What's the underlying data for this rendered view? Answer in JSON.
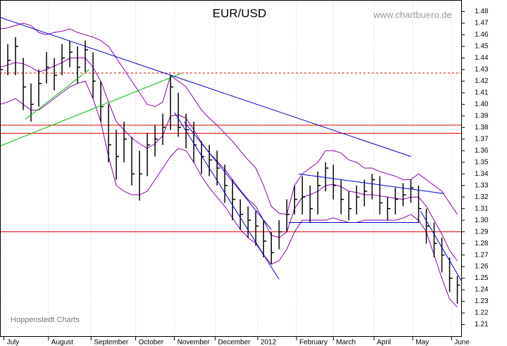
{
  "chart_data": {
    "type": "ohlc",
    "title": "EUR/USD",
    "source": "www.chartbuero.de",
    "credit": "Hoppenstedt Charts",
    "bar_color": "#000000",
    "x": [
      0,
      4,
      8,
      12,
      16,
      20,
      24,
      28,
      32,
      36,
      40,
      44,
      48,
      52,
      56,
      60,
      64,
      68,
      72,
      76,
      80,
      84,
      88,
      92,
      96,
      100,
      104,
      108,
      112,
      116,
      120,
      124,
      128,
      132,
      136,
      140,
      144,
      148,
      152,
      156,
      160,
      164,
      168,
      172,
      176,
      180,
      184,
      188,
      192,
      196,
      200,
      204,
      208,
      212,
      216,
      220,
      224,
      228,
      232,
      236
    ],
    "high": [
      1.442,
      1.452,
      1.458,
      1.44,
      1.418,
      1.43,
      1.445,
      1.44,
      1.452,
      1.455,
      1.45,
      1.455,
      1.445,
      1.42,
      1.4,
      1.378,
      1.385,
      1.372,
      1.36,
      1.375,
      1.382,
      1.392,
      1.425,
      1.41,
      1.392,
      1.385,
      1.368,
      1.365,
      1.36,
      1.348,
      1.335,
      1.318,
      1.312,
      1.308,
      1.3,
      1.29,
      1.3,
      1.318,
      1.33,
      1.338,
      1.33,
      1.342,
      1.35,
      1.348,
      1.335,
      1.325,
      1.33,
      1.335,
      1.34,
      1.338,
      1.32,
      1.328,
      1.332,
      1.335,
      1.33,
      1.31,
      1.298,
      1.285,
      1.268,
      1.252
    ],
    "low": [
      1.418,
      1.425,
      1.425,
      1.395,
      1.385,
      1.398,
      1.418,
      1.412,
      1.425,
      1.432,
      1.418,
      1.428,
      1.405,
      1.385,
      1.35,
      1.335,
      1.35,
      1.33,
      1.317,
      1.338,
      1.355,
      1.365,
      1.378,
      1.372,
      1.362,
      1.35,
      1.34,
      1.338,
      1.33,
      1.315,
      1.3,
      1.292,
      1.285,
      1.278,
      1.268,
      1.262,
      1.275,
      1.29,
      1.305,
      1.305,
      1.298,
      1.305,
      1.325,
      1.318,
      1.305,
      1.3,
      1.305,
      1.312,
      1.318,
      1.305,
      1.3,
      1.305,
      1.312,
      1.315,
      1.298,
      1.28,
      1.268,
      1.255,
      1.238,
      1.228
    ],
    "close": [
      1.43,
      1.438,
      1.45,
      1.415,
      1.4,
      1.418,
      1.432,
      1.425,
      1.44,
      1.445,
      1.432,
      1.447,
      1.42,
      1.398,
      1.365,
      1.355,
      1.37,
      1.34,
      1.34,
      1.365,
      1.37,
      1.38,
      1.415,
      1.38,
      1.378,
      1.365,
      1.355,
      1.352,
      1.345,
      1.33,
      1.318,
      1.305,
      1.3,
      1.295,
      1.282,
      1.272,
      1.29,
      1.305,
      1.318,
      1.32,
      1.31,
      1.33,
      1.345,
      1.33,
      1.318,
      1.31,
      1.32,
      1.325,
      1.335,
      1.315,
      1.31,
      1.318,
      1.322,
      1.328,
      1.31,
      1.295,
      1.28,
      1.27,
      1.25,
      1.244
    ],
    "bollinger": {
      "color": "#8800aa",
      "upper": [
        1.465,
        1.466,
        1.468,
        1.47,
        1.468,
        1.462,
        1.46,
        1.462,
        1.463,
        1.465,
        1.462,
        1.46,
        1.458,
        1.455,
        1.45,
        1.44,
        1.43,
        1.42,
        1.41,
        1.4,
        1.398,
        1.402,
        1.425,
        1.42,
        1.415,
        1.405,
        1.395,
        1.388,
        1.382,
        1.375,
        1.368,
        1.36,
        1.352,
        1.345,
        1.33,
        1.312,
        1.306,
        1.305,
        1.33,
        1.34,
        1.345,
        1.35,
        1.36,
        1.36,
        1.358,
        1.352,
        1.35,
        1.345,
        1.345,
        1.342,
        1.34,
        1.338,
        1.335,
        1.335,
        1.34,
        1.335,
        1.33,
        1.325,
        1.315,
        1.305
      ],
      "middle": [
        1.432,
        1.434,
        1.436,
        1.435,
        1.432,
        1.428,
        1.43,
        1.433,
        1.436,
        1.44,
        1.44,
        1.44,
        1.432,
        1.42,
        1.402,
        1.385,
        1.378,
        1.371,
        1.366,
        1.362,
        1.366,
        1.373,
        1.39,
        1.391,
        1.388,
        1.378,
        1.367,
        1.358,
        1.351,
        1.344,
        1.335,
        1.326,
        1.318,
        1.312,
        1.3,
        1.287,
        1.285,
        1.29,
        1.31,
        1.32,
        1.322,
        1.325,
        1.33,
        1.331,
        1.329,
        1.325,
        1.324,
        1.322,
        1.322,
        1.321,
        1.32,
        1.319,
        1.318,
        1.32,
        1.32,
        1.312,
        1.3,
        1.288,
        1.274,
        1.265
      ],
      "lower": [
        1.4,
        1.402,
        1.405,
        1.4,
        1.395,
        1.395,
        1.4,
        1.405,
        1.41,
        1.415,
        1.418,
        1.42,
        1.405,
        1.385,
        1.355,
        1.33,
        1.325,
        1.322,
        1.322,
        1.325,
        1.335,
        1.345,
        1.355,
        1.362,
        1.36,
        1.35,
        1.338,
        1.328,
        1.32,
        1.312,
        1.302,
        1.292,
        1.285,
        1.28,
        1.27,
        1.262,
        1.265,
        1.275,
        1.29,
        1.3,
        1.3,
        1.3,
        1.3,
        1.302,
        1.3,
        1.298,
        1.298,
        1.3,
        1.3,
        1.3,
        1.3,
        1.3,
        1.302,
        1.305,
        1.3,
        1.29,
        1.27,
        1.25,
        1.232,
        1.225
      ]
    },
    "hlines": [
      {
        "value": 1.382,
        "color": "#e00000",
        "style": "solid"
      },
      {
        "value": 1.375,
        "color": "#e00000",
        "style": "solid"
      },
      {
        "value": 1.29,
        "color": "#e00000",
        "style": "solid"
      },
      {
        "value": 1.427,
        "color": "#e00000",
        "style": "dotted"
      }
    ],
    "trendlines": [
      {
        "color": "#0000cc",
        "x": [
          0,
          212
        ],
        "values": [
          1.475,
          1.355
        ]
      },
      {
        "color": "#00bb00",
        "x": [
          0,
          94
        ],
        "values": [
          1.364,
          1.427
        ]
      },
      {
        "color": "#00bb00",
        "x": [
          13,
          46
        ],
        "values": [
          1.387,
          1.43
        ]
      },
      {
        "color": "#0000cc",
        "x": [
          90,
          144
        ],
        "values": [
          1.393,
          1.249
        ]
      },
      {
        "color": "#0000cc",
        "x": [
          95,
          140
        ],
        "values": [
          1.385,
          1.292
        ]
      },
      {
        "color": "#0000cc",
        "x": [
          154,
          229
        ],
        "values": [
          1.34,
          1.323
        ]
      },
      {
        "color": "#0000cc",
        "x": [
          149,
          216
        ],
        "values": [
          1.298,
          1.298
        ]
      },
      {
        "color": "#0000cc",
        "x": [
          217,
          238
        ],
        "values": [
          1.308,
          1.248
        ]
      }
    ],
    "xlim": [
      0,
      238
    ],
    "ylim": [
      1.2,
      1.49
    ],
    "grid": true,
    "xticks": [
      {
        "value": 2,
        "label": "July"
      },
      {
        "value": 25,
        "label": "August"
      },
      {
        "value": 47,
        "label": "September"
      },
      {
        "value": 70,
        "label": "October"
      },
      {
        "value": 90,
        "label": "November"
      },
      {
        "value": 111,
        "label": "December"
      },
      {
        "value": 133,
        "label": "2012"
      },
      {
        "value": 153,
        "label": "February"
      },
      {
        "value": 172,
        "label": "March"
      },
      {
        "value": 193,
        "label": "April"
      },
      {
        "value": 213,
        "label": "May"
      },
      {
        "value": 233,
        "label": "June"
      }
    ],
    "yticks": [
      1.21,
      1.22,
      1.23,
      1.24,
      1.25,
      1.26,
      1.27,
      1.28,
      1.29,
      {
        "value": 1.3,
        "label": "1.30"
      },
      1.31,
      1.32,
      1.33,
      1.34,
      1.35,
      1.36,
      1.37,
      1.38,
      1.39,
      {
        "value": 1.4,
        "label": "1.40"
      },
      1.41,
      1.42,
      1.43,
      1.44,
      1.45,
      1.46,
      1.47,
      1.48
    ]
  }
}
